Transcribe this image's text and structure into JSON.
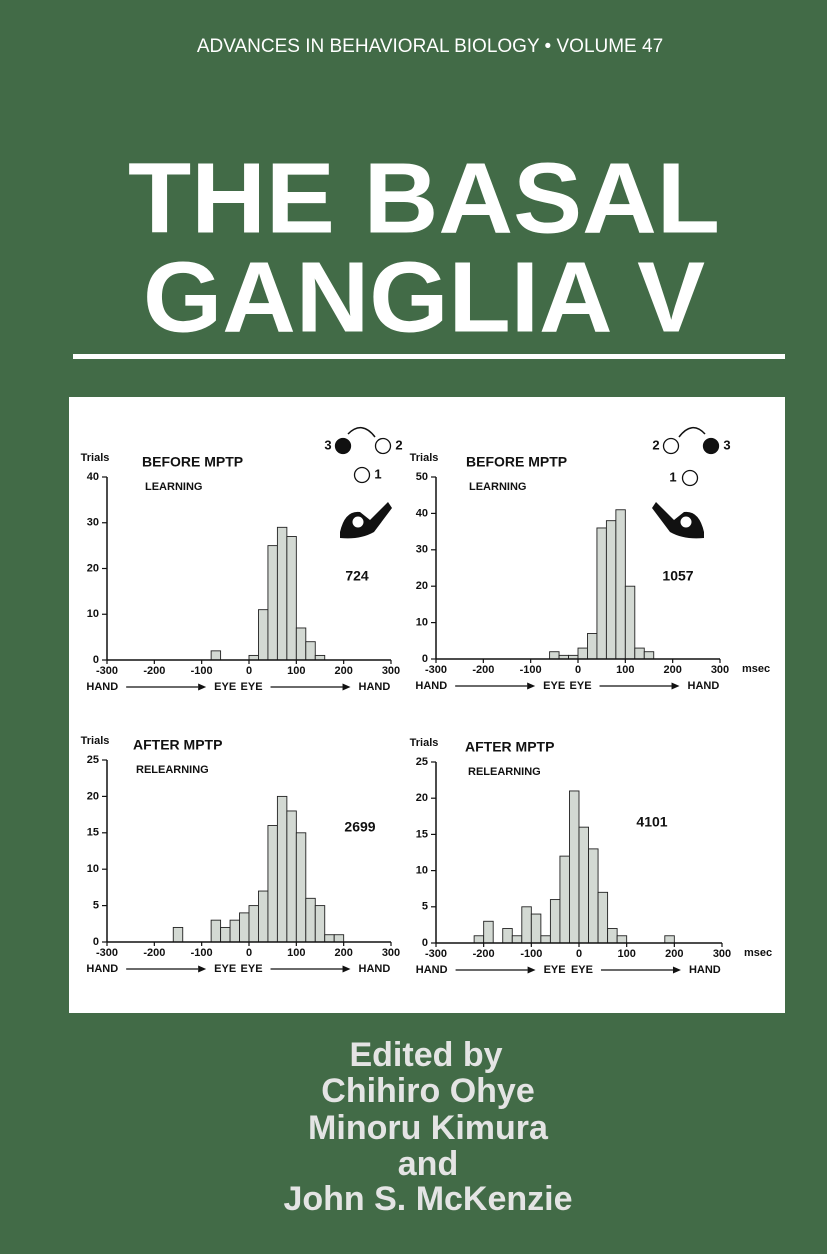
{
  "series_title": "ADVANCES IN BEHAVIORAL BIOLOGY • VOLUME 47",
  "title": [
    "THE BASAL",
    "GANGLIA V"
  ],
  "editors": [
    "Edited by",
    "Chihiro Ohye",
    "Minoru Kimura",
    "and",
    "John S. McKenzie"
  ],
  "chart_data": [
    {
      "type": "histogram",
      "title": "BEFORE MPTP",
      "subtitle": "LEARNING",
      "ylabel": "Trials",
      "annotation": "724",
      "position_labels": [
        "3",
        "2",
        "1"
      ],
      "direction_labels": [
        [
          "HAND",
          "EYE"
        ],
        [
          "EYE",
          "HAND"
        ]
      ],
      "bins": [
        -300,
        -280,
        -260,
        -240,
        -220,
        -200,
        -180,
        -160,
        -140,
        -120,
        -100,
        -80,
        -60,
        -40,
        -20,
        0,
        20,
        40,
        60,
        80,
        100,
        120,
        140,
        160,
        180,
        200,
        220,
        240,
        260,
        280,
        300
      ],
      "values": [
        0,
        0,
        0,
        0,
        0,
        0,
        0,
        0,
        0,
        0,
        0,
        2,
        0,
        0,
        0,
        1,
        11,
        25,
        29,
        27,
        7,
        4,
        1,
        0,
        0,
        0,
        0,
        0,
        0,
        0
      ],
      "color": "#d3d9d3",
      "xlim": [
        -300,
        300
      ],
      "xticks": [
        -300,
        -200,
        -100,
        0,
        100,
        200,
        300
      ],
      "ylim": [
        0,
        40
      ],
      "yticks": [
        0,
        10,
        20,
        30,
        40
      ]
    },
    {
      "type": "histogram",
      "title": "BEFORE MPTP",
      "subtitle": "LEARNING",
      "ylabel": "Trials",
      "xlabel": "msec",
      "annotation": "1057",
      "position_labels": [
        "2",
        "3",
        "1"
      ],
      "direction_labels": [
        [
          "HAND",
          "EYE"
        ],
        [
          "EYE",
          "HAND"
        ]
      ],
      "bins": [
        -300,
        -280,
        -260,
        -240,
        -220,
        -200,
        -180,
        -160,
        -140,
        -120,
        -100,
        -80,
        -60,
        -40,
        -20,
        0,
        20,
        40,
        60,
        80,
        100,
        120,
        140,
        160,
        180,
        200,
        220,
        240,
        260,
        280,
        300
      ],
      "values": [
        0,
        0,
        0,
        0,
        0,
        0,
        0,
        0,
        0,
        0,
        0,
        0,
        2,
        1,
        1,
        3,
        7,
        36,
        38,
        41,
        20,
        3,
        2,
        0,
        0,
        0,
        0,
        0,
        0,
        0
      ],
      "color": "#d3d9d3",
      "xlim": [
        -300,
        300
      ],
      "xticks": [
        -300,
        -200,
        -100,
        0,
        100,
        200,
        300
      ],
      "ylim": [
        0,
        50
      ],
      "yticks": [
        0,
        10,
        20,
        30,
        40,
        50
      ]
    },
    {
      "type": "histogram",
      "title": "AFTER MPTP",
      "subtitle": "RELEARNING",
      "ylabel": "Trials",
      "annotation": "2699",
      "direction_labels": [
        [
          "HAND",
          "EYE"
        ],
        [
          "EYE",
          "HAND"
        ]
      ],
      "bins": [
        -300,
        -280,
        -260,
        -240,
        -220,
        -200,
        -180,
        -160,
        -140,
        -120,
        -100,
        -80,
        -60,
        -40,
        -20,
        0,
        20,
        40,
        60,
        80,
        100,
        120,
        140,
        160,
        180,
        200,
        220,
        240,
        260,
        280,
        300
      ],
      "values": [
        0,
        0,
        0,
        0,
        0,
        0,
        0,
        2,
        0,
        0,
        0,
        3,
        2,
        3,
        4,
        5,
        7,
        16,
        20,
        18,
        15,
        6,
        5,
        1,
        1,
        0,
        0,
        0,
        0,
        0
      ],
      "color": "#d3d9d3",
      "xlim": [
        -300,
        300
      ],
      "xticks": [
        -300,
        -200,
        -100,
        0,
        100,
        200,
        300
      ],
      "ylim": [
        0,
        25
      ],
      "yticks": [
        0,
        5,
        10,
        15,
        20,
        25
      ]
    },
    {
      "type": "histogram",
      "title": "AFTER MPTP",
      "subtitle": "RELEARNING",
      "ylabel": "Trials",
      "xlabel": "msec",
      "annotation": "4101",
      "direction_labels": [
        [
          "HAND",
          "EYE"
        ],
        [
          "EYE",
          "HAND"
        ]
      ],
      "bins": [
        -300,
        -280,
        -260,
        -240,
        -220,
        -200,
        -180,
        -160,
        -140,
        -120,
        -100,
        -80,
        -60,
        -40,
        -20,
        0,
        20,
        40,
        60,
        80,
        100,
        120,
        140,
        160,
        180,
        200,
        220,
        240,
        260,
        280,
        300
      ],
      "values": [
        0,
        0,
        0,
        0,
        1,
        3,
        0,
        2,
        1,
        5,
        4,
        1,
        6,
        12,
        21,
        16,
        13,
        7,
        2,
        1,
        0,
        0,
        0,
        0,
        1,
        0,
        0,
        0,
        0,
        0
      ],
      "color": "#d3d9d3",
      "xlim": [
        -300,
        300
      ],
      "xticks": [
        -300,
        -200,
        -100,
        0,
        100,
        200,
        300
      ],
      "ylim": [
        0,
        25
      ],
      "yticks": [
        0,
        5,
        10,
        15,
        20,
        25
      ]
    }
  ]
}
